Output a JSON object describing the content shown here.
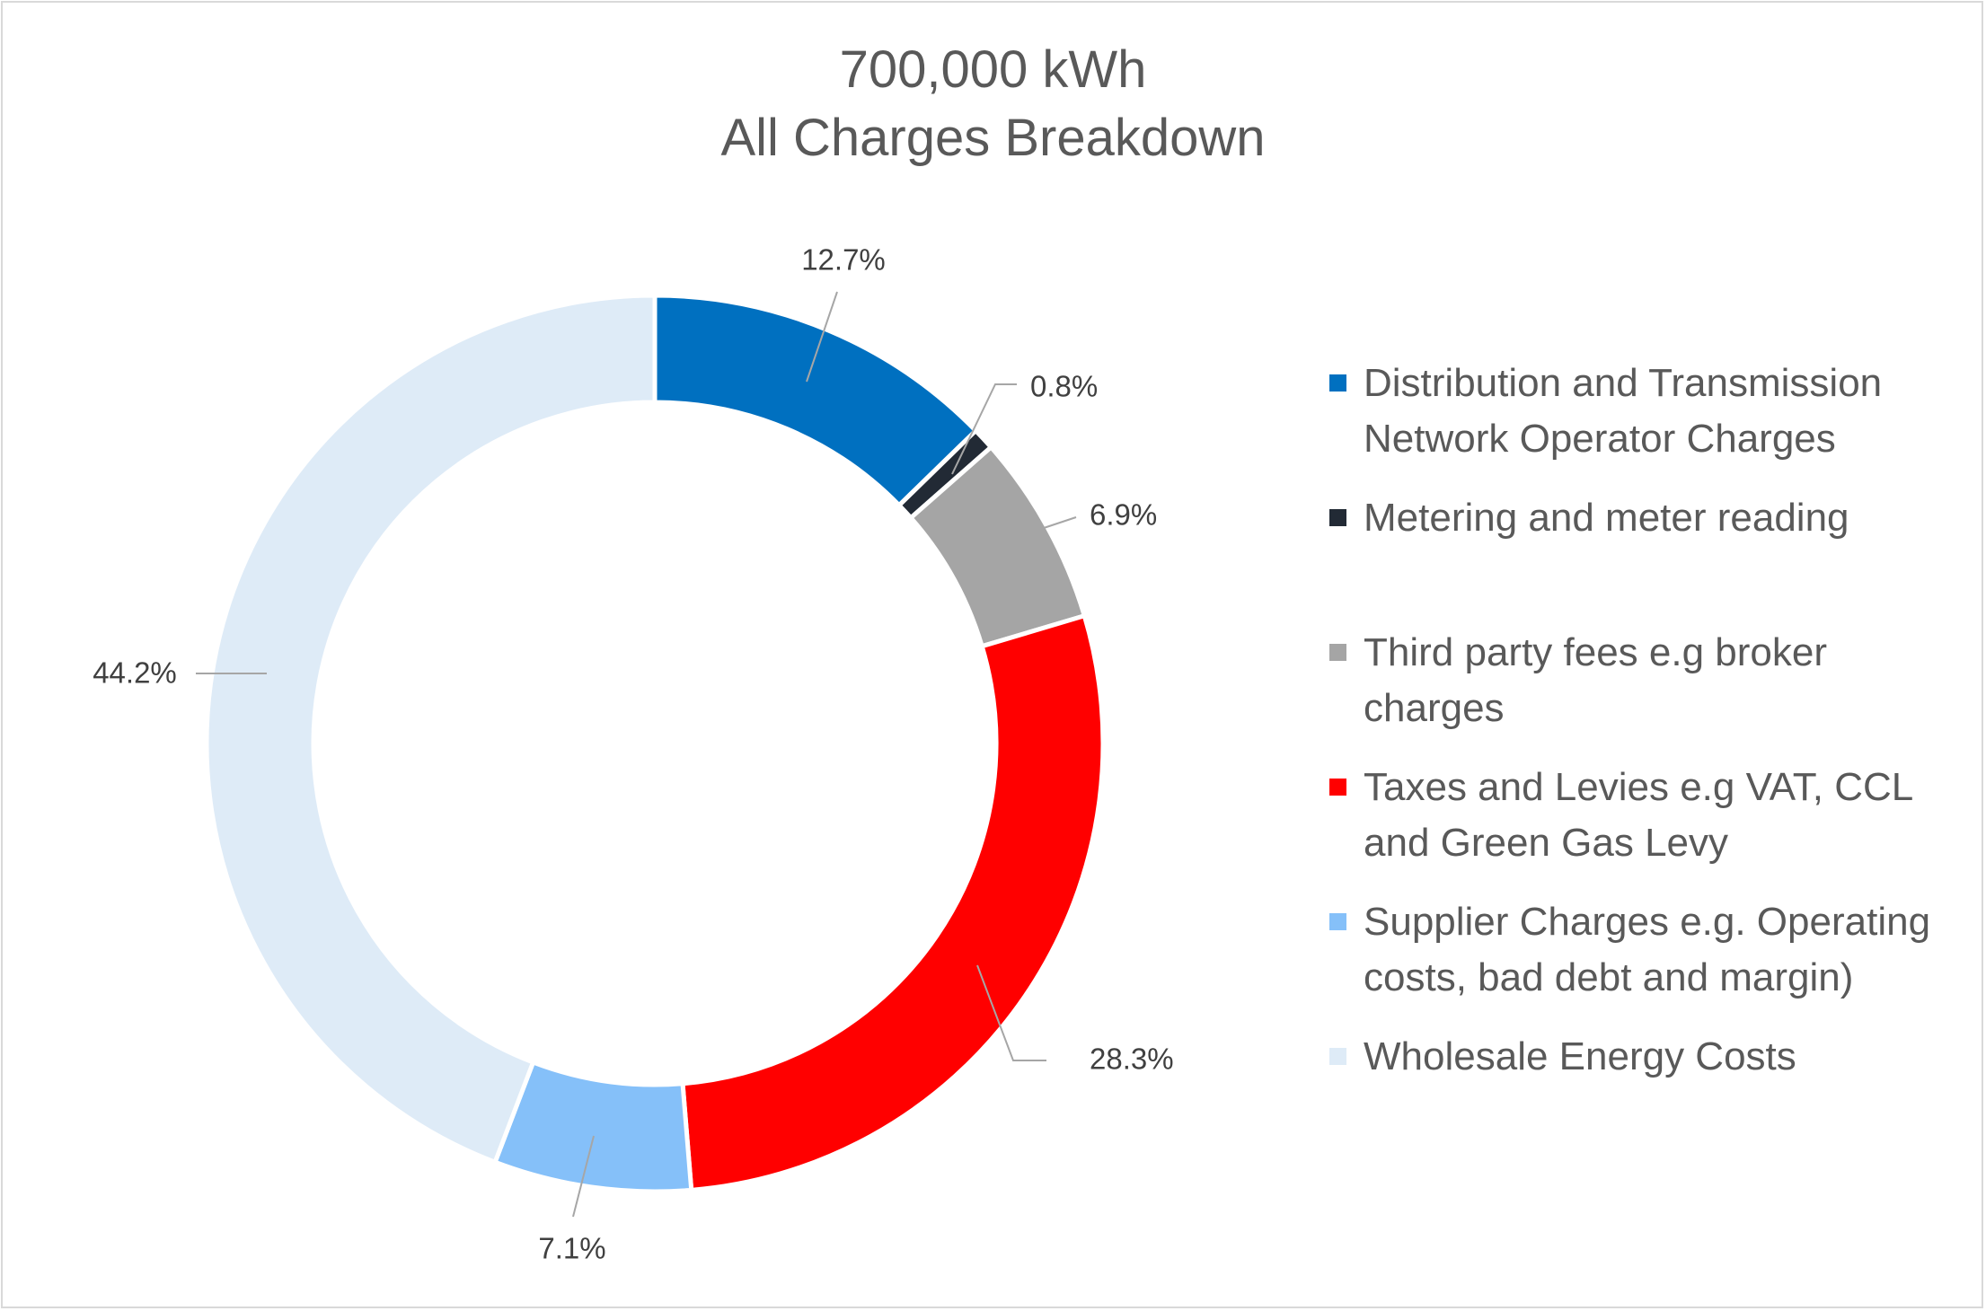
{
  "chart_data": {
    "type": "pie",
    "title_lines": [
      "700,000 kWh",
      "All Charges Breakdown"
    ],
    "legend_position": "right",
    "series": [
      {
        "name": "Distribution and Transmission Network Operator Charges",
        "label": "12.7%",
        "value": 12.7,
        "color": "#0070C0"
      },
      {
        "name": "Metering and meter reading",
        "label": "0.8%",
        "value": 0.8,
        "color": "#222A35"
      },
      {
        "name": "Third party fees e.g broker charges",
        "label": "6.9%",
        "value": 6.9,
        "color": "#A5A5A5"
      },
      {
        "name": "Taxes and Levies e.g VAT, CCL and Green Gas Levy",
        "label": "28.3%",
        "value": 28.3,
        "color": "#FF0000"
      },
      {
        "name": "Supplier Charges e.g. Operating costs, bad debt and margin)",
        "label": "7.1%",
        "value": 7.1,
        "color": "#85C0F9"
      },
      {
        "name": "Wholesale Energy Costs",
        "label": "44.2%",
        "value": 44.2,
        "color": "#DEEBF7"
      }
    ]
  }
}
